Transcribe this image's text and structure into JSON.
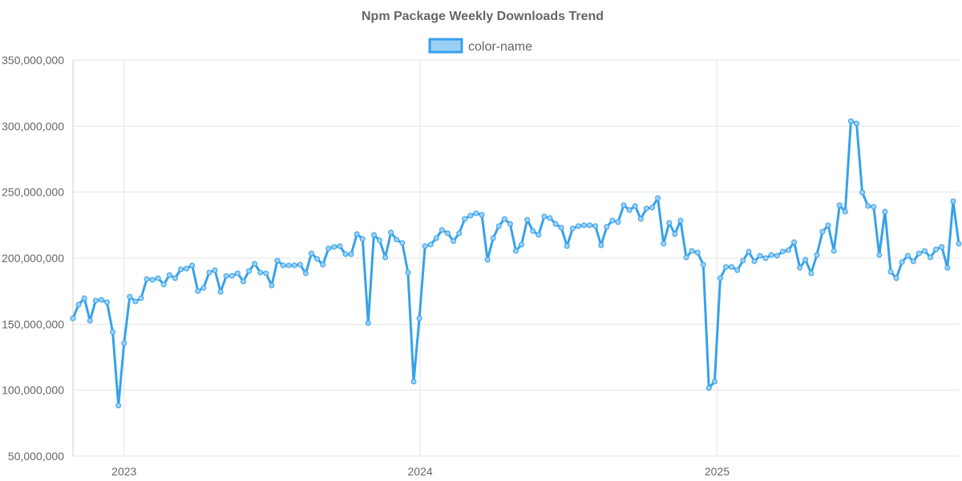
{
  "chart_data": {
    "type": "line",
    "title": "Npm Package Weekly Downloads Trend",
    "xlabel": "",
    "ylabel": "",
    "ylim": [
      50000000,
      350000000
    ],
    "y_ticks": [
      "50,000,000",
      "100,000,000",
      "150,000,000",
      "200,000,000",
      "250,000,000",
      "300,000,000",
      "350,000,000"
    ],
    "y_tick_values": [
      50000000,
      100000000,
      150000000,
      200000000,
      250000000,
      300000000,
      350000000
    ],
    "x_ticks": [
      "2023",
      "2024",
      "2025"
    ],
    "x_tick_values": [
      "2023-01-01",
      "2024-01-01",
      "2025-01-01"
    ],
    "grid": true,
    "legend": "top-center",
    "colors": {
      "line": "#36a2eb",
      "point_fill": "#9ad0f5",
      "grid": "#e5e5e5"
    },
    "x": [
      "2022-10-30",
      "2022-11-06",
      "2022-11-13",
      "2022-11-20",
      "2022-11-27",
      "2022-12-04",
      "2022-12-11",
      "2022-12-18",
      "2022-12-25",
      "2023-01-01",
      "2023-01-08",
      "2023-01-15",
      "2023-01-22",
      "2023-01-29",
      "2023-02-05",
      "2023-02-12",
      "2023-02-19",
      "2023-02-26",
      "2023-03-05",
      "2023-03-12",
      "2023-03-19",
      "2023-03-26",
      "2023-04-02",
      "2023-04-09",
      "2023-04-16",
      "2023-04-23",
      "2023-04-30",
      "2023-05-07",
      "2023-05-14",
      "2023-05-21",
      "2023-05-28",
      "2023-06-04",
      "2023-06-11",
      "2023-06-18",
      "2023-06-25",
      "2023-07-02",
      "2023-07-09",
      "2023-07-16",
      "2023-07-23",
      "2023-07-30",
      "2023-08-06",
      "2023-08-13",
      "2023-08-20",
      "2023-08-27",
      "2023-09-03",
      "2023-09-10",
      "2023-09-17",
      "2023-09-24",
      "2023-10-01",
      "2023-10-08",
      "2023-10-15",
      "2023-10-22",
      "2023-10-29",
      "2023-11-05",
      "2023-11-12",
      "2023-11-19",
      "2023-11-26",
      "2023-12-03",
      "2023-12-10",
      "2023-12-17",
      "2023-12-24",
      "2023-12-31",
      "2024-01-07",
      "2024-01-14",
      "2024-01-21",
      "2024-01-28",
      "2024-02-04",
      "2024-02-11",
      "2024-02-18",
      "2024-02-25",
      "2024-03-03",
      "2024-03-10",
      "2024-03-17",
      "2024-03-24",
      "2024-03-31",
      "2024-04-07",
      "2024-04-14",
      "2024-04-21",
      "2024-04-28",
      "2024-05-05",
      "2024-05-12",
      "2024-05-19",
      "2024-05-26",
      "2024-06-02",
      "2024-06-09",
      "2024-06-16",
      "2024-06-23",
      "2024-06-30",
      "2024-07-07",
      "2024-07-14",
      "2024-07-21",
      "2024-07-28",
      "2024-08-04",
      "2024-08-11",
      "2024-08-18",
      "2024-08-25",
      "2024-09-01",
      "2024-09-08",
      "2024-09-15",
      "2024-09-22",
      "2024-09-29",
      "2024-10-06",
      "2024-10-13",
      "2024-10-20",
      "2024-10-27",
      "2024-11-03",
      "2024-11-10",
      "2024-11-17",
      "2024-11-24",
      "2024-12-01",
      "2024-12-08",
      "2024-12-15",
      "2024-12-22",
      "2024-12-29",
      "2025-01-05",
      "2025-01-12",
      "2025-01-19",
      "2025-01-26",
      "2025-02-02",
      "2025-02-09",
      "2025-02-16",
      "2025-02-23",
      "2025-03-02",
      "2025-03-09",
      "2025-03-16",
      "2025-03-23",
      "2025-03-30",
      "2025-04-06",
      "2025-04-13",
      "2025-04-20",
      "2025-04-27",
      "2025-05-04",
      "2025-05-11",
      "2025-05-18",
      "2025-05-25",
      "2025-06-01",
      "2025-06-08",
      "2025-06-15",
      "2025-06-22",
      "2025-06-29",
      "2025-07-06",
      "2025-07-13",
      "2025-07-20",
      "2025-07-27",
      "2025-08-03",
      "2025-08-10",
      "2025-08-17",
      "2025-08-24",
      "2025-08-31",
      "2025-09-07",
      "2025-09-14",
      "2025-09-21",
      "2025-09-28",
      "2025-10-05",
      "2025-10-12",
      "2025-10-19",
      "2025-10-26"
    ],
    "series": [
      {
        "name": "color-name",
        "values": [
          154400000,
          164800000,
          169600000,
          152600000,
          167800000,
          168400000,
          166600000,
          144100000,
          88300000,
          135600000,
          170800000,
          167200000,
          169600000,
          184200000,
          183600000,
          184800000,
          180000000,
          187200000,
          184800000,
          191500000,
          192100000,
          194500000,
          175100000,
          177500000,
          189100000,
          190900000,
          174500000,
          186600000,
          186600000,
          188500000,
          182400000,
          190300000,
          195700000,
          189100000,
          188500000,
          179300000,
          198200000,
          194500000,
          194500000,
          194500000,
          195100000,
          188500000,
          203600000,
          199400000,
          195100000,
          207300000,
          208500000,
          209100000,
          203000000,
          203000000,
          218200000,
          214600000,
          150800000,
          217600000,
          213400000,
          200600000,
          219400000,
          214000000,
          211500000,
          189100000,
          106500000,
          154400000,
          209100000,
          210300000,
          215200000,
          221300000,
          218800000,
          212800000,
          218800000,
          229700000,
          232200000,
          234000000,
          232800000,
          198800000,
          215200000,
          224300000,
          229700000,
          225900000,
          205500000,
          210300000,
          229100000,
          220600000,
          217600000,
          231600000,
          230400000,
          225900000,
          223100000,
          209100000,
          222500000,
          224300000,
          224900000,
          224900000,
          224300000,
          209700000,
          223700000,
          228500000,
          227300000,
          240100000,
          236400000,
          239500000,
          229700000,
          237600000,
          238300000,
          245500000,
          210900000,
          226700000,
          218200000,
          228500000,
          200600000,
          205500000,
          204200000,
          195100000,
          101600000,
          106500000,
          184800000,
          193300000,
          193300000,
          190900000,
          198200000,
          204900000,
          197600000,
          201800000,
          200000000,
          202400000,
          201800000,
          204900000,
          206100000,
          212100000,
          192700000,
          198800000,
          188500000,
          202400000,
          220000000,
          224900000,
          205500000,
          240100000,
          235200000,
          303800000,
          302000000,
          249800000,
          239500000,
          238900000,
          202400000,
          235200000,
          189700000,
          184800000,
          197000000,
          201800000,
          197600000,
          203600000,
          205500000,
          200600000,
          206700000,
          208500000,
          192700000,
          243100000,
          210900000
        ]
      }
    ]
  }
}
